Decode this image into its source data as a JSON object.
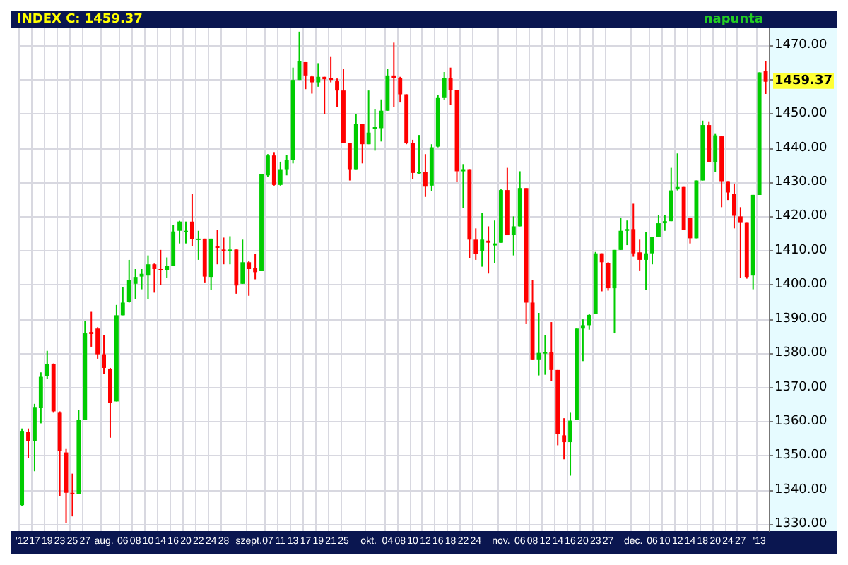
{
  "chart_data": {
    "type": "candlestick",
    "title": "INDEX C: 1459.37",
    "subtitle": "napunta",
    "categories": [
      "'12",
      null,
      "17",
      null,
      "19",
      null,
      "23",
      null,
      "25",
      null,
      "27",
      null,
      null,
      "aug.",
      null,
      null,
      "06",
      null,
      "08",
      null,
      "10",
      null,
      "14",
      null,
      "16",
      null,
      "20",
      null,
      "22",
      null,
      "24",
      null,
      "28",
      null,
      null,
      null,
      "szept.",
      null,
      null,
      "07",
      null,
      "11",
      null,
      "13",
      null,
      "17",
      null,
      "19",
      null,
      "21",
      null,
      "25",
      null,
      null,
      null,
      "okt.",
      null,
      null,
      "04",
      null,
      "08",
      null,
      "10",
      null,
      "12",
      null,
      "16",
      null,
      "18",
      null,
      "22",
      null,
      "24",
      null,
      null,
      null,
      "nov.",
      null,
      null,
      "06",
      null,
      "08",
      null,
      "12",
      null,
      "14",
      null,
      "16",
      null,
      "20",
      null,
      "23",
      null,
      "27",
      null,
      null,
      null,
      "dec.",
      null,
      null,
      "06",
      null,
      "10",
      null,
      "12",
      null,
      "14",
      null,
      "18",
      null,
      "20",
      null,
      "24",
      null,
      "27",
      null,
      null,
      "'13",
      null
    ],
    "ohlc": [
      [
        1335.6,
        1358,
        1335.4,
        1357.3
      ],
      [
        1357,
        1358,
        1349.4,
        1354.3
      ],
      [
        1354.3,
        1365.2,
        1345.5,
        1364.3
      ],
      [
        1364.1,
        1374.4,
        1359.5,
        1373.1
      ],
      [
        1373.4,
        1380.7,
        1372.4,
        1376.8
      ],
      [
        1376.8,
        1377,
        1362.6,
        1363
      ],
      [
        1362.6,
        1363,
        1338.3,
        1351.4
      ],
      [
        1351,
        1352,
        1330.4,
        1339.2
      ],
      [
        1339.2,
        1344.8,
        1332.3,
        1338.9
      ],
      [
        1338.9,
        1363.5,
        1338.9,
        1360.6
      ],
      [
        1360.6,
        1389.5,
        1360.6,
        1385.8
      ],
      [
        1386.2,
        1392.1,
        1381.9,
        1385.6
      ],
      [
        1387.2,
        1387.6,
        1378.4,
        1379.7
      ],
      [
        1379.7,
        1385.3,
        1374,
        1375.7
      ],
      [
        1375.5,
        1375.7,
        1355.3,
        1365.5
      ],
      [
        1365.9,
        1394.1,
        1365.9,
        1391.1
      ],
      [
        1391.1,
        1399.4,
        1391.1,
        1394.8
      ],
      [
        1395,
        1407.3,
        1394.8,
        1401.4
      ],
      [
        1400.3,
        1404.6,
        1395.8,
        1402.3
      ],
      [
        1402.4,
        1404.6,
        1398.7,
        1403.2
      ],
      [
        1402.7,
        1408.6,
        1395.8,
        1406
      ],
      [
        1406,
        1406.2,
        1397.7,
        1404.6
      ],
      [
        1404.6,
        1410.2,
        1400,
        1404.2
      ],
      [
        1404.2,
        1408,
        1402,
        1405.6
      ],
      [
        1405.6,
        1417.4,
        1405.6,
        1415.6
      ],
      [
        1415.8,
        1418.7,
        1412.1,
        1418.5
      ],
      [
        1415.4,
        1418.5,
        1412.1,
        1415.8
      ],
      [
        1418.5,
        1426.6,
        1411.2,
        1413.5
      ],
      [
        1413.2,
        1415.8,
        1407.3,
        1413.5
      ],
      [
        1413.5,
        1413.5,
        1400.7,
        1402.4
      ],
      [
        1402.3,
        1413.5,
        1398.5,
        1413.5
      ],
      [
        1411.2,
        1416.1,
        1406,
        1410.8
      ],
      [
        1410.3,
        1413.8,
        1406,
        1409.9
      ],
      [
        1409.9,
        1414.2,
        1406,
        1410.3
      ],
      [
        1410.3,
        1410.3,
        1397.4,
        1399.8
      ],
      [
        1400.3,
        1413.2,
        1400.3,
        1406.6
      ],
      [
        1406.6,
        1406.9,
        1396.8,
        1404.6
      ],
      [
        1405,
        1409,
        1401.6,
        1403.7
      ],
      [
        1404,
        1432.3,
        1404,
        1432.3
      ],
      [
        1432,
        1438.2,
        1431.6,
        1437.8
      ],
      [
        1437.8,
        1438.8,
        1429,
        1429.2
      ],
      [
        1429.2,
        1436,
        1429,
        1433.6
      ],
      [
        1433.6,
        1438,
        1432,
        1436.5
      ],
      [
        1436.5,
        1463.5,
        1435.5,
        1459.9
      ],
      [
        1459.9,
        1474,
        1459.9,
        1465.4
      ],
      [
        1465.1,
        1465.1,
        1457.2,
        1461.2
      ],
      [
        1460.9,
        1461.2,
        1455.9,
        1459.2
      ],
      [
        1459.2,
        1464.8,
        1457.9,
        1460.8
      ],
      [
        1460.8,
        1460.8,
        1450,
        1460.1
      ],
      [
        1460.5,
        1466.8,
        1459.2,
        1459.9
      ],
      [
        1459.5,
        1460.3,
        1452,
        1456.8
      ],
      [
        1456.8,
        1463.2,
        1441.5,
        1441.5
      ],
      [
        1441.5,
        1441.5,
        1430.5,
        1433.6
      ],
      [
        1433.6,
        1450,
        1433.6,
        1447.1
      ],
      [
        1447.1,
        1447.1,
        1435.5,
        1441.1
      ],
      [
        1441.1,
        1456.8,
        1441.1,
        1444.5
      ],
      [
        1445.7,
        1451.3,
        1439.2,
        1446.1
      ],
      [
        1445.8,
        1454.2,
        1441.9,
        1450.9
      ],
      [
        1450.9,
        1463.1,
        1450.9,
        1461.2
      ],
      [
        1461.2,
        1470.8,
        1452,
        1460.5
      ],
      [
        1460.5,
        1460.8,
        1453.3,
        1455.7
      ],
      [
        1455.7,
        1455.7,
        1441.1,
        1441.5
      ],
      [
        1441.5,
        1442.4,
        1430.9,
        1432.7
      ],
      [
        1432.7,
        1443.8,
        1432.3,
        1433
      ],
      [
        1432.9,
        1438.2,
        1425.7,
        1428.7
      ],
      [
        1429,
        1441.1,
        1427.4,
        1440.2
      ],
      [
        1440.4,
        1455.5,
        1440.2,
        1454.6
      ],
      [
        1454.6,
        1462.2,
        1454,
        1460.5
      ],
      [
        1460.5,
        1463.5,
        1452.6,
        1457
      ],
      [
        1457,
        1457,
        1430,
        1433.2
      ],
      [
        1433.2,
        1435.3,
        1422.4,
        1433.6
      ],
      [
        1433.6,
        1433.6,
        1407.9,
        1413.2
      ],
      [
        1413.2,
        1416.5,
        1407.3,
        1409
      ],
      [
        1409.9,
        1421.1,
        1405.3,
        1413.2
      ],
      [
        1412.9,
        1417.1,
        1403.3,
        1412.3
      ],
      [
        1411.5,
        1418.8,
        1406.4,
        1412.1
      ],
      [
        1412.3,
        1427.9,
        1412.3,
        1427.7
      ],
      [
        1427.7,
        1434.2,
        1414.5,
        1414.5
      ],
      [
        1414.5,
        1420,
        1408.6,
        1417.1
      ],
      [
        1417.1,
        1433.2,
        1417.1,
        1428.3
      ],
      [
        1428.3,
        1428.3,
        1388.5,
        1394.8
      ],
      [
        1394.8,
        1401.4,
        1378,
        1378
      ],
      [
        1378,
        1391.8,
        1373.5,
        1380.1
      ],
      [
        1380,
        1385.2,
        1373.7,
        1380.3
      ],
      [
        1380.3,
        1389.1,
        1371.8,
        1375.1
      ],
      [
        1375.1,
        1375.1,
        1353.1,
        1356.3
      ],
      [
        1356,
        1361,
        1349,
        1354
      ],
      [
        1354,
        1362.6,
        1344.2,
        1360.3
      ],
      [
        1360.6,
        1387.2,
        1360.6,
        1387.2
      ],
      [
        1387.2,
        1389.9,
        1377.7,
        1388.2
      ],
      [
        1388.2,
        1391.5,
        1386.9,
        1391.2
      ],
      [
        1391.5,
        1409.6,
        1391.5,
        1409.2
      ],
      [
        1409.2,
        1409.2,
        1398.1,
        1406.6
      ],
      [
        1406.3,
        1406.6,
        1398.3,
        1399
      ],
      [
        1399,
        1410.2,
        1385.8,
        1410.2
      ],
      [
        1410.2,
        1419.5,
        1410.2,
        1415.8
      ],
      [
        1415.8,
        1418.8,
        1411.6,
        1416.3
      ],
      [
        1416.3,
        1423.7,
        1408.2,
        1409.2
      ],
      [
        1409.5,
        1413.2,
        1404,
        1407.3
      ],
      [
        1407.3,
        1415.5,
        1398.5,
        1409.2
      ],
      [
        1409.2,
        1414.1,
        1406,
        1414.1
      ],
      [
        1414.1,
        1420.4,
        1414.1,
        1418
      ],
      [
        1418,
        1420.4,
        1415.8,
        1418.6
      ],
      [
        1418.6,
        1434.2,
        1418.6,
        1427.6
      ],
      [
        1427.9,
        1438.4,
        1427.6,
        1428.6
      ],
      [
        1428.6,
        1428.6,
        1416.1,
        1416.1
      ],
      [
        1419.5,
        1419.5,
        1412.1,
        1413.6
      ],
      [
        1413.6,
        1430.5,
        1413.6,
        1430.5
      ],
      [
        1430.5,
        1448,
        1430.5,
        1446.7
      ],
      [
        1446.7,
        1447.6,
        1435.8,
        1435.8
      ],
      [
        1435.8,
        1444.1,
        1432.9,
        1443.7
      ],
      [
        1443.4,
        1443.4,
        1422.7,
        1430.3
      ],
      [
        1430.3,
        1430.3,
        1424.8,
        1427
      ],
      [
        1426.6,
        1429.6,
        1416.5,
        1420.2
      ],
      [
        1420,
        1422.7,
        1402,
        1418.1
      ],
      [
        1418.1,
        1418.1,
        1401.8,
        1402.3
      ],
      [
        1402.7,
        1426.3,
        1398.7,
        1426.3
      ],
      [
        1426.3,
        1462.1,
        1426.3,
        1462.1
      ],
      [
        1462.4,
        1465.3,
        1455.8,
        1459.37
      ]
    ],
    "colors": [
      "#00cc00",
      "#ff0000",
      "#00cc00",
      "#00cc00",
      "#00cc00",
      "#ff0000",
      "#ff0000",
      "#ff0000",
      "#ff0000",
      "#00cc00",
      "#00cc00",
      "#ff0000",
      "#ff0000",
      "#ff0000",
      "#ff0000",
      "#00cc00",
      "#00cc00",
      "#00cc00",
      "#00cc00",
      "#00cc00",
      "#00cc00",
      "#ff0000",
      "#ff0000",
      "#00cc00",
      "#00cc00",
      "#00cc00",
      "#00cc00",
      "#ff0000",
      "#00cc00",
      "#ff0000",
      "#00cc00",
      "#ff0000",
      "#ff0000",
      "#00cc00",
      "#ff0000",
      "#00cc00",
      "#ff0000",
      "#ff0000",
      "#00cc00",
      "#00cc00",
      "#ff0000",
      "#00cc00",
      "#00cc00",
      "#00cc00",
      "#00cc00",
      "#ff0000",
      "#ff0000",
      "#00cc00",
      "#ff0000",
      "#ff0000",
      "#ff0000",
      "#ff0000",
      "#ff0000",
      "#00cc00",
      "#ff0000",
      "#00cc00",
      "#00cc00",
      "#00cc00",
      "#00cc00",
      "#ff0000",
      "#ff0000",
      "#ff0000",
      "#ff0000",
      "#00cc00",
      "#ff0000",
      "#00cc00",
      "#00cc00",
      "#00cc00",
      "#ff0000",
      "#ff0000",
      "#00cc00",
      "#ff0000",
      "#ff0000",
      "#00cc00",
      "#ff0000",
      "#00cc00",
      "#00cc00",
      "#ff0000",
      "#00cc00",
      "#00cc00",
      "#ff0000",
      "#ff0000",
      "#00cc00",
      "#00cc00",
      "#ff0000",
      "#ff0000",
      "#ff0000",
      "#00cc00",
      "#00cc00",
      "#00cc00",
      "#00cc00",
      "#00cc00",
      "#ff0000",
      "#ff0000",
      "#00cc00",
      "#00cc00",
      "#00cc00",
      "#ff0000",
      "#ff0000",
      "#00cc00",
      "#00cc00",
      "#00cc00",
      "#00cc00",
      "#00cc00",
      "#00cc00",
      "#ff0000",
      "#ff0000",
      "#00cc00",
      "#00cc00",
      "#ff0000",
      "#00cc00",
      "#ff0000",
      "#ff0000",
      "#ff0000",
      "#ff0000",
      "#ff0000",
      "#00cc00",
      "#00cc00",
      "#ff0000"
    ],
    "ylim": [
      1328,
      1475
    ],
    "yticks": [
      {
        "value": 1330,
        "label": "1330.00"
      },
      {
        "value": 1340,
        "label": "1340.00"
      },
      {
        "value": 1350,
        "label": "1350.00"
      },
      {
        "value": 1360,
        "label": "1360.00"
      },
      {
        "value": 1370,
        "label": "1370.00"
      },
      {
        "value": 1380,
        "label": "1380.00"
      },
      {
        "value": 1390,
        "label": "1390.00"
      },
      {
        "value": 1400,
        "label": "1400.00"
      },
      {
        "value": 1410,
        "label": "1410.00"
      },
      {
        "value": 1420,
        "label": "1420.00"
      },
      {
        "value": 1430,
        "label": "1430.00"
      },
      {
        "value": 1440,
        "label": "1440.00"
      },
      {
        "value": 1450,
        "label": "1450.00"
      },
      {
        "value": 1460,
        "label": null
      },
      {
        "value": 1470,
        "label": "1470.00"
      }
    ],
    "annotations": [
      "1459.37"
    ],
    "grid": true
  }
}
